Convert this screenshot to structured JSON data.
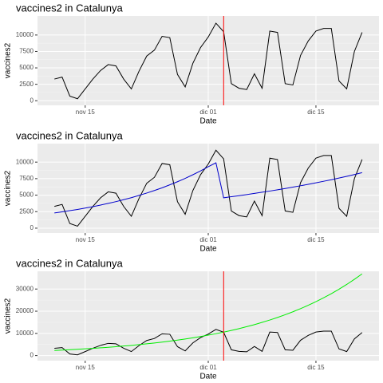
{
  "chart_data": [
    {
      "type": "line",
      "title": "vaccines2 in Catalunya",
      "xlabel": "Date",
      "ylabel": "vaccines2",
      "x": [
        "nov 11",
        "nov 12",
        "nov 13",
        "nov 14",
        "nov 15",
        "nov 16",
        "nov 17",
        "nov 18",
        "nov 19",
        "nov 20",
        "nov 21",
        "nov 22",
        "nov 23",
        "nov 24",
        "nov 25",
        "nov 26",
        "nov 27",
        "nov 28",
        "nov 29",
        "nov 30",
        "dic 01",
        "dic 02",
        "dic 03",
        "dic 04",
        "dic 05",
        "dic 06",
        "dic 07",
        "dic 08",
        "dic 09",
        "dic 10",
        "dic 11",
        "dic 12",
        "dic 13",
        "dic 14",
        "dic 15",
        "dic 16",
        "dic 17",
        "dic 18",
        "dic 19",
        "dic 20",
        "dic 21"
      ],
      "xticks": [
        "nov 15",
        "dic 01",
        "dic 15"
      ],
      "series": [
        {
          "color": "#000000",
          "values": [
            3300,
            3600,
            700,
            300,
            1800,
            3300,
            4600,
            5500,
            5300,
            3300,
            1800,
            4500,
            6800,
            7700,
            9800,
            9600,
            4000,
            2100,
            5700,
            8100,
            9700,
            11800,
            10500,
            2600,
            1900,
            1700,
            4100,
            1900,
            10600,
            10400,
            2600,
            2400,
            6900,
            9100,
            10600,
            11000,
            11000,
            3000,
            1800,
            7500,
            10400
          ]
        }
      ],
      "vline": "dic 03",
      "vline_color": "#ff0000",
      "ylim": [
        -700,
        12900
      ],
      "yticks": [
        0,
        2500,
        5000,
        7500,
        10000
      ],
      "grid": true
    },
    {
      "type": "line",
      "title": "vaccines2 in Catalunya",
      "xlabel": "Date",
      "ylabel": "vaccines2",
      "x": [
        "nov 11",
        "nov 12",
        "nov 13",
        "nov 14",
        "nov 15",
        "nov 16",
        "nov 17",
        "nov 18",
        "nov 19",
        "nov 20",
        "nov 21",
        "nov 22",
        "nov 23",
        "nov 24",
        "nov 25",
        "nov 26",
        "nov 27",
        "nov 28",
        "nov 29",
        "nov 30",
        "dic 01",
        "dic 02",
        "dic 03",
        "dic 04",
        "dic 05",
        "dic 06",
        "dic 07",
        "dic 08",
        "dic 09",
        "dic 10",
        "dic 11",
        "dic 12",
        "dic 13",
        "dic 14",
        "dic 15",
        "dic 16",
        "dic 17",
        "dic 18",
        "dic 19",
        "dic 20",
        "dic 21"
      ],
      "xticks": [
        "nov 15",
        "dic 01",
        "dic 15"
      ],
      "series": [
        {
          "color": "#000000",
          "values": [
            3300,
            3600,
            700,
            300,
            1800,
            3300,
            4600,
            5500,
            5300,
            3300,
            1800,
            4500,
            6800,
            7700,
            9800,
            9600,
            4000,
            2100,
            5700,
            8100,
            9700,
            11800,
            10500,
            2600,
            1900,
            1700,
            4100,
            1900,
            10600,
            10400,
            2600,
            2400,
            6900,
            9100,
            10600,
            11000,
            11000,
            3000,
            1800,
            7500,
            10400
          ]
        },
        {
          "color": "#0000cc",
          "values": [
            2300,
            2470,
            2650,
            2840,
            3040,
            3260,
            3500,
            3750,
            4020,
            4310,
            4620,
            4960,
            5320,
            5700,
            6110,
            6560,
            7030,
            7540,
            8090,
            8670,
            9300,
            9900,
            4600,
            4760,
            4920,
            5080,
            5260,
            5440,
            5620,
            5810,
            6010,
            6210,
            6420,
            6640,
            6870,
            7100,
            7340,
            7590,
            7850,
            8120,
            8400
          ]
        }
      ],
      "ylim": [
        -730,
        12800
      ],
      "yticks": [
        0,
        2500,
        5000,
        7500,
        10000
      ],
      "grid": true
    },
    {
      "type": "line",
      "title": "vaccines2 in Catalunya",
      "xlabel": "Date",
      "ylabel": "vaccines2",
      "x": [
        "nov 11",
        "nov 12",
        "nov 13",
        "nov 14",
        "nov 15",
        "nov 16",
        "nov 17",
        "nov 18",
        "nov 19",
        "nov 20",
        "nov 21",
        "nov 22",
        "nov 23",
        "nov 24",
        "nov 25",
        "nov 26",
        "nov 27",
        "nov 28",
        "nov 29",
        "nov 30",
        "dic 01",
        "dic 02",
        "dic 03",
        "dic 04",
        "dic 05",
        "dic 06",
        "dic 07",
        "dic 08",
        "dic 09",
        "dic 10",
        "dic 11",
        "dic 12",
        "dic 13",
        "dic 14",
        "dic 15",
        "dic 16",
        "dic 17",
        "dic 18",
        "dic 19",
        "dic 20",
        "dic 21"
      ],
      "xticks": [
        "nov 15",
        "dic 01",
        "dic 15"
      ],
      "series": [
        {
          "color": "#000000",
          "values": [
            3300,
            3600,
            700,
            300,
            1800,
            3300,
            4600,
            5500,
            5300,
            3300,
            1800,
            4500,
            6800,
            7700,
            9800,
            9600,
            4000,
            2100,
            5700,
            8100,
            9700,
            11800,
            10500,
            2600,
            1900,
            1700,
            4100,
            1900,
            10600,
            10400,
            2600,
            2400,
            6900,
            9100,
            10600,
            11000,
            11000,
            3000,
            1800,
            7500,
            10400
          ]
        },
        {
          "color": "#00ee00",
          "values": [
            2300,
            2465,
            2642,
            2832,
            3035,
            3253,
            3487,
            3737,
            4005,
            4293,
            4601,
            4932,
            5286,
            5665,
            6072,
            6508,
            6975,
            7476,
            8013,
            8588,
            9205,
            9866,
            10574,
            11334,
            12147,
            13020,
            13954,
            14956,
            16030,
            17181,
            18415,
            19737,
            21154,
            22673,
            24301,
            26046,
            27916,
            29920,
            32069,
            34372,
            36840
          ]
        }
      ],
      "vline": "dic 03",
      "vline_color": "#ff0000",
      "ylim": [
        -2300,
        38000
      ],
      "yticks": [
        0,
        10000,
        20000,
        30000
      ],
      "grid": true
    }
  ]
}
